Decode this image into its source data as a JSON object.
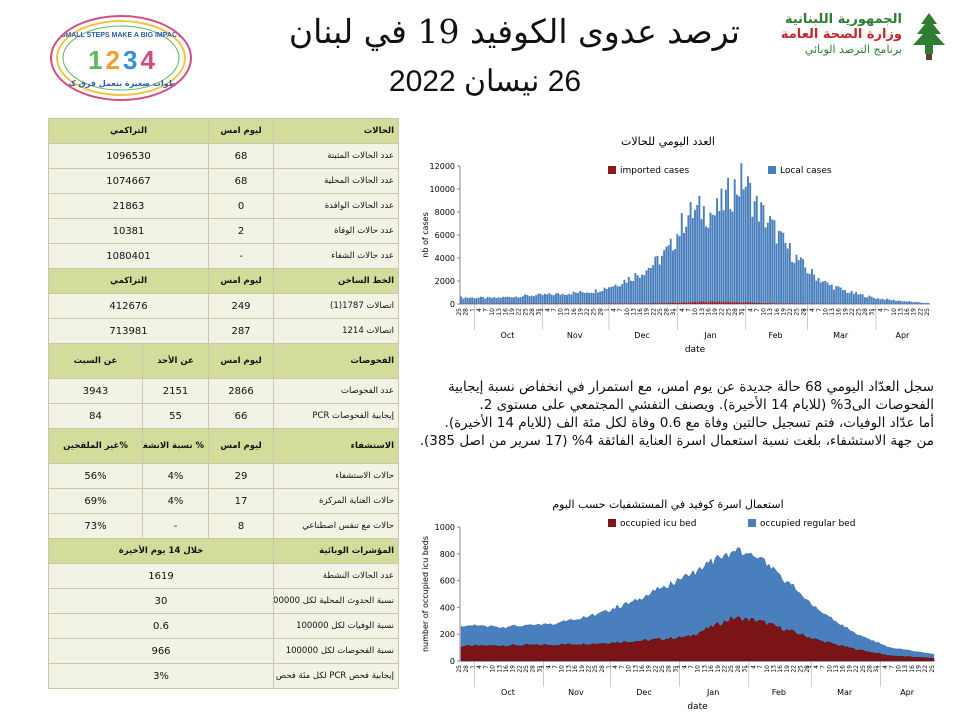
{
  "header": {
    "title": "ترصد عدوى الكوفيد 19 في لبنان",
    "date": "26 نيسان 2022",
    "ministry_line1": "الجمهورية اللبنانية",
    "ministry_line2": "وزارة الصحة العامة",
    "ministry_line3": "برنامج الترصد الوبائي",
    "campaign_top": "SMALL STEPS MAKE A BIG IMPACT",
    "campaign_numbers": "1234",
    "campaign_bottom": "خطوات صغيرة بتعمل فرق كبير"
  },
  "table": {
    "rows": [
      {
        "kind": "hdr",
        "cells": [
          "الحالات",
          "ليوم امس",
          "التراكمي"
        ]
      },
      {
        "kind": "row",
        "cells": [
          "عدد الحالات المثبتة",
          "68",
          "1096530"
        ]
      },
      {
        "kind": "row",
        "cells": [
          "عدد الحالات المحلية",
          "68",
          "1074667"
        ]
      },
      {
        "kind": "row",
        "cells": [
          "عدد الحالات الوافدة",
          "0",
          "21863"
        ]
      },
      {
        "kind": "row",
        "cells": [
          "عدد حالات الوفاة",
          "2",
          "10381"
        ]
      },
      {
        "kind": "row",
        "cells": [
          "عدد حالات الشفاء",
          "-",
          "1080401"
        ]
      },
      {
        "kind": "hdr",
        "cells": [
          "الخط الساخن",
          "ليوم امس",
          "التراكمي"
        ]
      },
      {
        "kind": "row",
        "cells": [
          "اتصالات 1787(1)",
          "249",
          "412676"
        ]
      },
      {
        "kind": "row",
        "cells": [
          "اتصالات 1214",
          "287",
          "713981"
        ]
      },
      {
        "kind": "hdr4",
        "cells": [
          "الفحوصات",
          "ليوم امس",
          "عن الأحد",
          "عن السبت"
        ]
      },
      {
        "kind": "row4",
        "cells": [
          "عدد الفحوصات",
          "2866",
          "2151",
          "3943"
        ]
      },
      {
        "kind": "row4",
        "cells": [
          "إيجابية الفحوصات PCR",
          "66",
          "55",
          "84"
        ]
      },
      {
        "kind": "hdr4",
        "cells": [
          "الاستشفاء",
          "ليوم امس",
          "% نسبة الانشغال",
          "%غير الملقحين"
        ]
      },
      {
        "kind": "row4",
        "cells": [
          "حالات الاستشفاء",
          "29",
          "4%",
          "56%"
        ]
      },
      {
        "kind": "row4",
        "cells": [
          "حالات العناية المركزة",
          "17",
          "4%",
          "69%"
        ]
      },
      {
        "kind": "row4",
        "cells": [
          "حالات مع تنفس اصطناعي",
          "8",
          "-",
          "73%"
        ]
      },
      {
        "kind": "hdr2",
        "cells": [
          "المؤشرات الوبائية",
          "خلال 14 يوم الأخيرة"
        ]
      },
      {
        "kind": "row2",
        "cells": [
          "عدد الحالات النشطة",
          "1619"
        ]
      },
      {
        "kind": "row2",
        "cells": [
          "نسبة الحدوث المحلية لكل 100000",
          "30"
        ]
      },
      {
        "kind": "row2",
        "cells": [
          "نسبة الوفيات لكل 100000",
          "0.6"
        ]
      },
      {
        "kind": "row2",
        "cells": [
          "نسبة الفحوصات لكل 100000",
          "966"
        ]
      },
      {
        "kind": "row2",
        "cells": [
          "إيجابية فحص PCR لكل مئة فحص",
          "3%"
        ]
      }
    ]
  },
  "paragraph": [
    "سجل العدّاد اليومي 68 حالة جديدة عن يوم امس، مع استمرار في انخفاض نسبة إيجابية الفحوصات الى3% (للايام 14 الأخيرة). ويصنف التفشي المجتمعي على مستوى 2.",
    "أما عدّاد الوفيات، فتم تسجيل حالتين وفاة مع 0.6 وفاة لكل مئة الف (للايام 14 الأخيرة).",
    "من جهة الاستشفاء، بلغت نسبة استعمال اسرة العناية الفائقة 4% (17 سرير من اصل 385)."
  ],
  "chart_data": [
    {
      "type": "bar",
      "title": "العدد اليومي للحالات",
      "xlabel": "date",
      "ylabel": "nb of cases",
      "ylim": [
        0,
        12000
      ],
      "yticks": [
        0,
        2000,
        4000,
        6000,
        8000,
        10000,
        12000
      ],
      "month_labels": [
        "Oct",
        "Nov",
        "Dec",
        "Jan",
        "Feb",
        "Mar",
        "Apr"
      ],
      "date_range": [
        "2021-09-25",
        "2022-04-25"
      ],
      "stacked": true,
      "grid": false,
      "legend": "top",
      "series": [
        {
          "name": "imported cases",
          "color": "#8b1a1a",
          "keypoints_date": [
            "2021-09-25",
            "2021-11-15",
            "2021-12-20",
            "2022-01-05",
            "2022-01-15",
            "2022-01-30",
            "2022-02-10",
            "2022-03-01",
            "2022-04-25"
          ],
          "keypoints_value": [
            20,
            30,
            60,
            140,
            190,
            160,
            80,
            20,
            0
          ]
        },
        {
          "name": "Local cases",
          "color": "#4a7fbe",
          "keypoints_date": [
            "2021-09-25",
            "2021-10-10",
            "2021-10-25",
            "2021-11-10",
            "2021-11-25",
            "2021-12-05",
            "2021-12-15",
            "2021-12-22",
            "2021-12-29",
            "2022-01-05",
            "2022-01-12",
            "2022-01-18",
            "2022-01-24",
            "2022-01-31",
            "2022-02-05",
            "2022-02-12",
            "2022-02-20",
            "2022-03-01",
            "2022-03-10",
            "2022-03-20",
            "2022-04-01",
            "2022-04-10",
            "2022-04-25"
          ],
          "keypoints_value": [
            550,
            500,
            700,
            850,
            1100,
            1700,
            2600,
            3500,
            4800,
            7500,
            8000,
            7600,
            9200,
            10700,
            8600,
            6900,
            4800,
            2900,
            1700,
            1000,
            500,
            300,
            70
          ]
        }
      ]
    },
    {
      "type": "area",
      "title": "استعمال اسرة كوفيد في المستشفيات حسب اليوم",
      "xlabel": "date",
      "ylabel": "number of occupied icu beds",
      "ylim": [
        0,
        1000
      ],
      "yticks": [
        0,
        200,
        400,
        600,
        800,
        1000
      ],
      "month_labels": [
        "Oct",
        "Nov",
        "Dec",
        "Jan",
        "Feb",
        "Mar",
        "Apr"
      ],
      "date_range": [
        "2021-09-25",
        "2022-04-25"
      ],
      "stacked": true,
      "grid": false,
      "legend": "top",
      "series": [
        {
          "name": "occupied icu bed",
          "color": "#7a1416",
          "keypoints_date": [
            "2021-09-25",
            "2021-10-15",
            "2021-11-05",
            "2021-11-25",
            "2021-12-15",
            "2022-01-05",
            "2022-01-25",
            "2022-02-05",
            "2022-02-20",
            "2022-03-05",
            "2022-03-20",
            "2022-04-05",
            "2022-04-25"
          ],
          "keypoints_value": [
            110,
            115,
            120,
            130,
            150,
            180,
            320,
            300,
            220,
            150,
            90,
            40,
            20
          ]
        },
        {
          "name": "occupied regular bed",
          "color": "#4a7fbe",
          "keypoints_date": [
            "2021-09-25",
            "2021-10-15",
            "2021-11-05",
            "2021-11-25",
            "2021-12-15",
            "2022-01-05",
            "2022-01-25",
            "2022-02-05",
            "2022-02-20",
            "2022-03-05",
            "2022-03-20",
            "2022-04-05",
            "2022-04-25"
          ],
          "keypoints_value": [
            150,
            140,
            160,
            220,
            320,
            460,
            500,
            480,
            340,
            220,
            120,
            60,
            30
          ]
        }
      ]
    }
  ]
}
